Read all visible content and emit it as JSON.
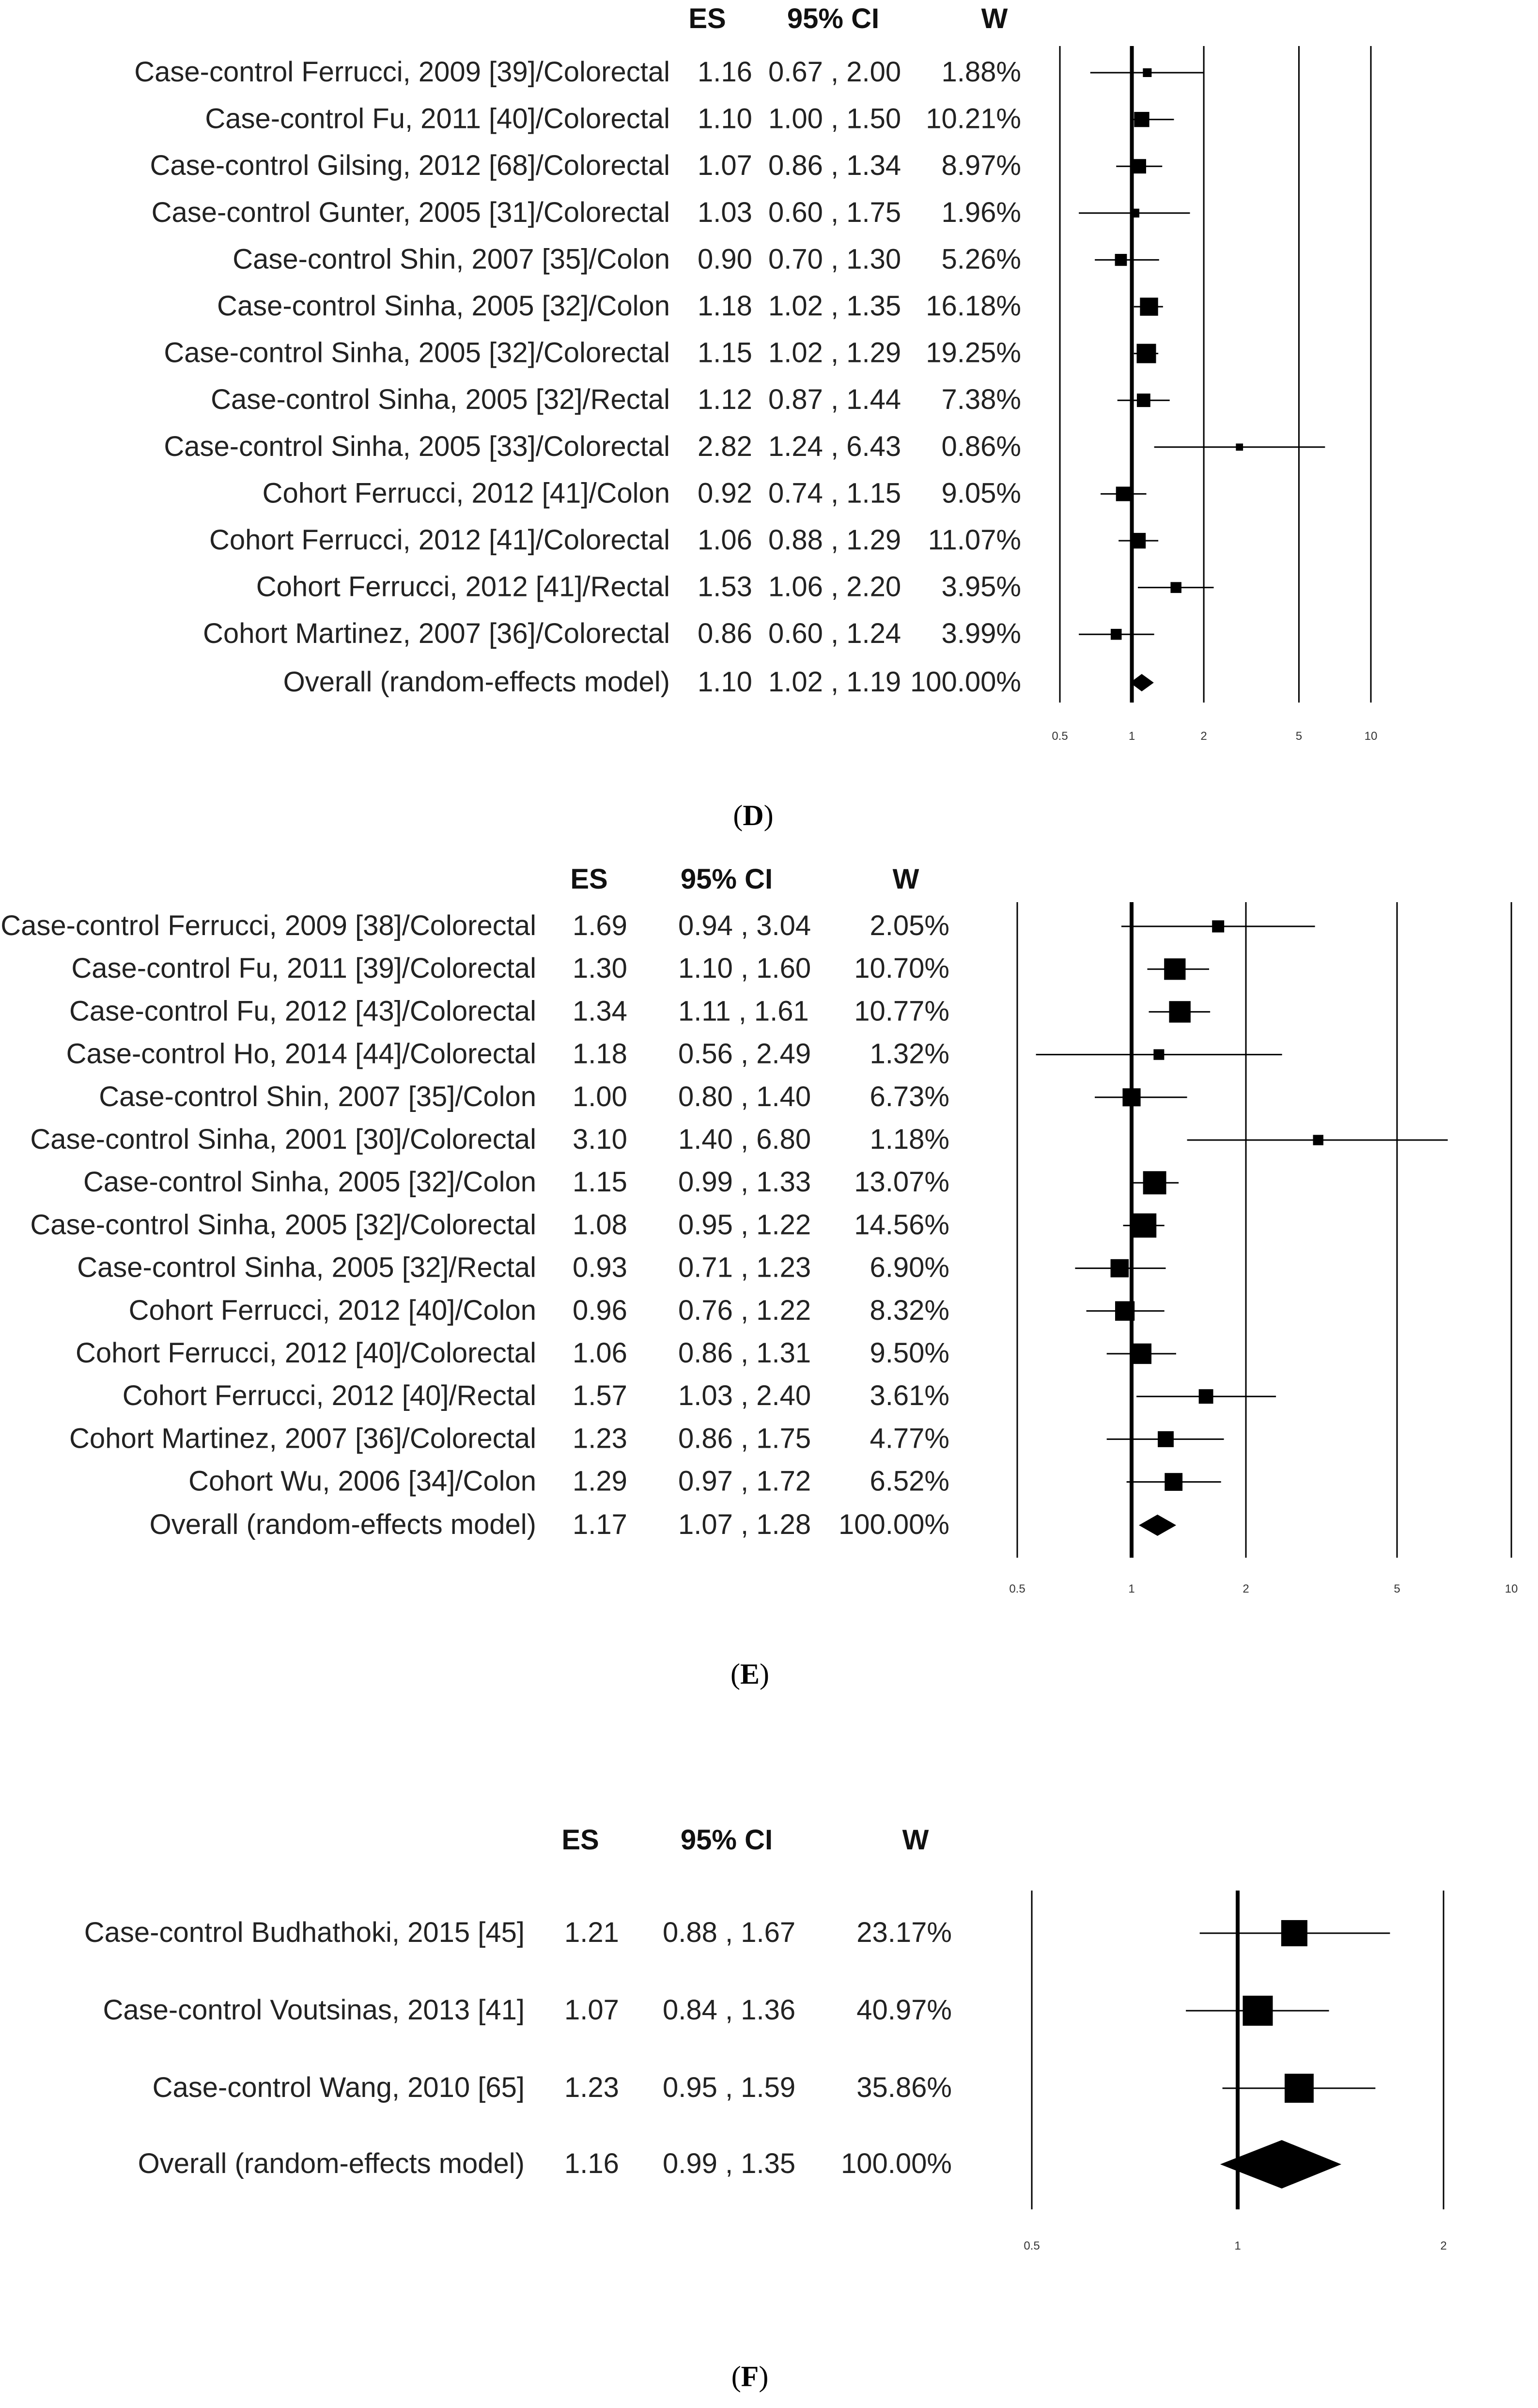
{
  "chart_data": [
    {
      "type": "forest",
      "panel": "D",
      "caption_open": "(",
      "caption_letter": "D",
      "caption_close": ")",
      "headers": {
        "es": "ES",
        "ci": "95% CI",
        "w": "W"
      },
      "xscale": "log",
      "xlim": [
        0.5,
        10
      ],
      "ticks": [
        0.5,
        1,
        2,
        5,
        10
      ],
      "tick_labels": [
        "0.5",
        "1",
        "2",
        "5",
        "10"
      ],
      "studies": [
        {
          "label": "Case-control Ferrucci, 2009 [39]/Colorectal",
          "es": 1.16,
          "lo": 0.67,
          "hi": 2.0,
          "es_text": "1.16",
          "ci_text": "0.67 , 2.00",
          "w_text": "1.88%",
          "w": 1.88
        },
        {
          "label": "Case-control Fu, 2011 [40]/Colorectal",
          "es": 1.1,
          "lo": 1.0,
          "hi": 1.5,
          "es_text": "1.10",
          "ci_text": "1.00 , 1.50",
          "w_text": "10.21%",
          "w": 10.21
        },
        {
          "label": "Case-control Gilsing, 2012 [68]/Colorectal",
          "es": 1.07,
          "lo": 0.86,
          "hi": 1.34,
          "es_text": "1.07",
          "ci_text": "0.86 , 1.34",
          "w_text": "8.97%",
          "w": 8.97
        },
        {
          "label": "Case-control Gunter, 2005 [31]/Colorectal",
          "es": 1.03,
          "lo": 0.6,
          "hi": 1.75,
          "es_text": "1.03",
          "ci_text": "0.60 , 1.75",
          "w_text": "1.96%",
          "w": 1.96
        },
        {
          "label": "Case-control Shin, 2007 [35]/Colon",
          "es": 0.9,
          "lo": 0.7,
          "hi": 1.3,
          "es_text": "0.90",
          "ci_text": "0.70 , 1.30",
          "w_text": "5.26%",
          "w": 5.26
        },
        {
          "label": "Case-control Sinha, 2005 [32]/Colon",
          "es": 1.18,
          "lo": 1.02,
          "hi": 1.35,
          "es_text": "1.18",
          "ci_text": "1.02 , 1.35",
          "w_text": "16.18%",
          "w": 16.18
        },
        {
          "label": "Case-control Sinha, 2005 [32]/Colorectal",
          "es": 1.15,
          "lo": 1.02,
          "hi": 1.29,
          "es_text": "1.15",
          "ci_text": "1.02 , 1.29",
          "w_text": "19.25%",
          "w": 19.25
        },
        {
          "label": "Case-control Sinha, 2005 [32]/Rectal",
          "es": 1.12,
          "lo": 0.87,
          "hi": 1.44,
          "es_text": "1.12",
          "ci_text": "0.87 , 1.44",
          "w_text": "7.38%",
          "w": 7.38
        },
        {
          "label": "Case-control Sinha, 2005 [33]/Colorectal",
          "es": 2.82,
          "lo": 1.24,
          "hi": 6.43,
          "es_text": "2.82",
          "ci_text": "1.24 , 6.43",
          "w_text": "0.86%",
          "w": 0.86
        },
        {
          "label": "Cohort Ferrucci, 2012 [41]/Colon",
          "es": 0.92,
          "lo": 0.74,
          "hi": 1.15,
          "es_text": "0.92",
          "ci_text": "0.74 , 1.15",
          "w_text": "9.05%",
          "w": 9.05
        },
        {
          "label": "Cohort Ferrucci, 2012 [41]/Colorectal",
          "es": 1.06,
          "lo": 0.88,
          "hi": 1.29,
          "es_text": "1.06",
          "ci_text": "0.88 , 1.29",
          "w_text": "11.07%",
          "w": 11.07
        },
        {
          "label": "Cohort Ferrucci, 2012 [41]/Rectal",
          "es": 1.53,
          "lo": 1.06,
          "hi": 2.2,
          "es_text": "1.53",
          "ci_text": "1.06 , 2.20",
          "w_text": "3.95%",
          "w": 3.95
        },
        {
          "label": "Cohort Martinez, 2007 [36]/Colorectal",
          "es": 0.86,
          "lo": 0.6,
          "hi": 1.24,
          "es_text": "0.86",
          "ci_text": "0.60 , 1.24",
          "w_text": "3.99%",
          "w": 3.99
        }
      ],
      "overall": {
        "label": "Overall (random-effects model)",
        "es": 1.1,
        "lo": 1.02,
        "hi": 1.19,
        "es_text": "1.10",
        "ci_text": "1.02 , 1.19",
        "w_text": "100.00%"
      }
    },
    {
      "type": "forest",
      "panel": "E",
      "caption_open": "(",
      "caption_letter": "E",
      "caption_close": ")",
      "headers": {
        "es": "ES",
        "ci": "95% CI",
        "w": "W"
      },
      "xscale": "log",
      "xlim": [
        0.5,
        10
      ],
      "ticks": [
        0.5,
        1,
        2,
        5,
        10
      ],
      "tick_labels": [
        "0.5",
        "1",
        "2",
        "5",
        "10"
      ],
      "studies": [
        {
          "label": "Case-control Ferrucci, 2009 [38]/Colorectal",
          "es": 1.69,
          "lo": 0.94,
          "hi": 3.04,
          "es_text": "1.69",
          "ci_text": "0.94 , 3.04",
          "w_text": "2.05%",
          "w": 2.05
        },
        {
          "label": "Case-control Fu, 2011 [39]/Colorectal",
          "es": 1.3,
          "lo": 1.1,
          "hi": 1.6,
          "es_text": "1.30",
          "ci_text": "1.10 , 1.60",
          "w_text": "10.70%",
          "w": 10.7
        },
        {
          "label": "Case-control Fu, 2012 [43]/Colorectal",
          "es": 1.34,
          "lo": 1.11,
          "hi": 1.61,
          "es_text": "1.34",
          "ci_text": "1.11 , 1.61",
          "w_text": "10.77%",
          "w": 10.77
        },
        {
          "label": "Case-control Ho, 2014 [44]/Colorectal",
          "es": 1.18,
          "lo": 0.56,
          "hi": 2.49,
          "es_text": "1.18",
          "ci_text": "0.56 , 2.49",
          "w_text": "1.32%",
          "w": 1.32
        },
        {
          "label": "Case-control Shin, 2007 [35]/Colon",
          "es": 1.0,
          "lo": 0.8,
          "hi": 1.4,
          "es_text": "1.00",
          "ci_text": "0.80 , 1.40",
          "w_text": "6.73%",
          "w": 6.73
        },
        {
          "label": "Case-control Sinha, 2001 [30]/Colorectal",
          "es": 3.1,
          "lo": 1.4,
          "hi": 6.8,
          "es_text": "3.10",
          "ci_text": "1.40 , 6.80",
          "w_text": "1.18%",
          "w": 1.18
        },
        {
          "label": "Case-control Sinha, 2005 [32]/Colon",
          "es": 1.15,
          "lo": 0.99,
          "hi": 1.33,
          "es_text": "1.15",
          "ci_text": "0.99 , 1.33",
          "w_text": "13.07%",
          "w": 13.07
        },
        {
          "label": "Case-control Sinha, 2005 [32]/Colorectal",
          "es": 1.08,
          "lo": 0.95,
          "hi": 1.22,
          "es_text": "1.08",
          "ci_text": "0.95 , 1.22",
          "w_text": "14.56%",
          "w": 14.56
        },
        {
          "label": "Case-control Sinha, 2005 [32]/Rectal",
          "es": 0.93,
          "lo": 0.71,
          "hi": 1.23,
          "es_text": "0.93",
          "ci_text": "0.71 , 1.23",
          "w_text": "6.90%",
          "w": 6.9
        },
        {
          "label": "Cohort Ferrucci, 2012 [40]/Colon",
          "es": 0.96,
          "lo": 0.76,
          "hi": 1.22,
          "es_text": "0.96",
          "ci_text": "0.76 , 1.22",
          "w_text": "8.32%",
          "w": 8.32
        },
        {
          "label": "Cohort Ferrucci, 2012 [40]/Colorectal",
          "es": 1.06,
          "lo": 0.86,
          "hi": 1.31,
          "es_text": "1.06",
          "ci_text": "0.86 , 1.31",
          "w_text": "9.50%",
          "w": 9.5
        },
        {
          "label": "Cohort Ferrucci, 2012 [40]/Rectal",
          "es": 1.57,
          "lo": 1.03,
          "hi": 2.4,
          "es_text": "1.57",
          "ci_text": "1.03 , 2.40",
          "w_text": "3.61%",
          "w": 3.61
        },
        {
          "label": "Cohort Martinez, 2007 [36]/Colorectal",
          "es": 1.23,
          "lo": 0.86,
          "hi": 1.75,
          "es_text": "1.23",
          "ci_text": "0.86 , 1.75",
          "w_text": "4.77%",
          "w": 4.77
        },
        {
          "label": "Cohort Wu, 2006 [34]/Colon",
          "es": 1.29,
          "lo": 0.97,
          "hi": 1.72,
          "es_text": "1.29",
          "ci_text": "0.97 , 1.72",
          "w_text": "6.52%",
          "w": 6.52
        }
      ],
      "overall": {
        "label": "Overall (random-effects model)",
        "es": 1.17,
        "lo": 1.07,
        "hi": 1.28,
        "es_text": "1.17",
        "ci_text": "1.07 , 1.28",
        "w_text": "100.00%"
      }
    },
    {
      "type": "forest",
      "panel": "F",
      "caption_open": "(",
      "caption_letter": "F",
      "caption_close": ")",
      "headers": {
        "es": "ES",
        "ci": "95% CI",
        "w": "W"
      },
      "xscale": "log",
      "xlim": [
        0.5,
        2
      ],
      "ticks": [
        0.5,
        1,
        2
      ],
      "tick_labels": [
        "0.5",
        "1",
        "2"
      ],
      "studies": [
        {
          "label": "Case-control Budhathoki, 2015 [45]",
          "es": 1.21,
          "lo": 0.88,
          "hi": 1.67,
          "es_text": "1.21",
          "ci_text": "0.88 , 1.67",
          "w_text": "23.17%",
          "w": 23.17
        },
        {
          "label": "Case-control Voutsinas, 2013 [41]",
          "es": 1.07,
          "lo": 0.84,
          "hi": 1.36,
          "es_text": "1.07",
          "ci_text": "0.84 , 1.36",
          "w_text": "40.97%",
          "w": 40.97
        },
        {
          "label": "Case-control Wang, 2010 [65]",
          "es": 1.23,
          "lo": 0.95,
          "hi": 1.59,
          "es_text": "1.23",
          "ci_text": "0.95 , 1.59",
          "w_text": "35.86%",
          "w": 35.86
        }
      ],
      "overall": {
        "label": "Overall (random-effects model)",
        "es": 1.16,
        "lo": 0.99,
        "hi": 1.35,
        "es_text": "1.16",
        "ci_text": "0.99 , 1.35",
        "w_text": "100.00%"
      }
    }
  ]
}
